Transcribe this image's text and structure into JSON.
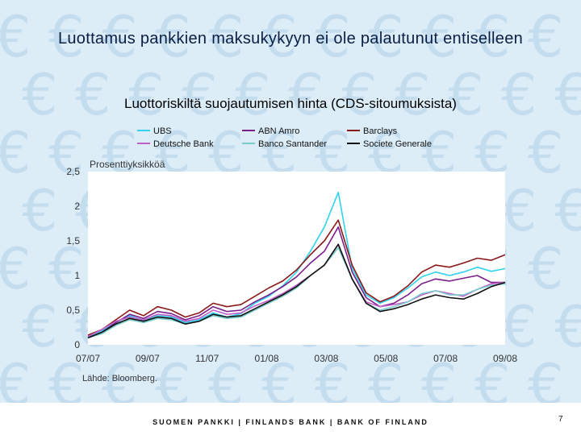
{
  "slide": {
    "title": "Luottamus pankkien maksukykyyn ei ole palautunut entiselleen",
    "footer": "SUOMEN PANKKI | FINLANDS BANK | BANK OF FINLAND",
    "page_number": "7",
    "source": "Lähde: Bloomberg.",
    "colors": {
      "background": "#dcedf8",
      "euro_symbol": "#c4ddee",
      "title": "#0a1f44"
    }
  },
  "chart_data": {
    "type": "line",
    "title": "Luottoriskiltä suojautumisen hinta (CDS-sitoumuksista)",
    "ylabel": "Prosenttiyksikköä",
    "xlabel": "",
    "ylim": [
      0,
      2.5
    ],
    "yticks": [
      "0",
      "0,5",
      "1",
      "1,5",
      "2",
      "2,5"
    ],
    "xticks": [
      "07/07",
      "09/07",
      "11/07",
      "01/08",
      "03/08",
      "05/08",
      "07/08",
      "09/08"
    ],
    "x_range": [
      0,
      15
    ],
    "grid": false,
    "legend_position": "top",
    "x": [
      0,
      0.5,
      1,
      1.5,
      2,
      2.5,
      3,
      3.5,
      4,
      4.5,
      5,
      5.5,
      6,
      6.5,
      7,
      7.5,
      8,
      8.5,
      9,
      9.5,
      10,
      10.5,
      11,
      11.5,
      12,
      12.5,
      13,
      13.5,
      14,
      14.5,
      15
    ],
    "series": [
      {
        "name": "UBS",
        "color": "#2fd3ee",
        "values": [
          0.12,
          0.2,
          0.32,
          0.42,
          0.35,
          0.42,
          0.4,
          0.32,
          0.36,
          0.46,
          0.4,
          0.45,
          0.6,
          0.7,
          0.85,
          1.05,
          1.35,
          1.7,
          2.2,
          1.1,
          0.72,
          0.6,
          0.68,
          0.82,
          0.98,
          1.05,
          1.0,
          1.05,
          1.12,
          1.06,
          1.1
        ]
      },
      {
        "name": "ABN Amro",
        "color": "#7a1f8c",
        "values": [
          0.1,
          0.18,
          0.32,
          0.44,
          0.38,
          0.48,
          0.45,
          0.36,
          0.42,
          0.55,
          0.48,
          0.5,
          0.62,
          0.72,
          0.84,
          0.98,
          1.18,
          1.35,
          1.7,
          1.05,
          0.68,
          0.55,
          0.6,
          0.72,
          0.88,
          0.95,
          0.92,
          0.96,
          1.0,
          0.9,
          0.9
        ]
      },
      {
        "name": "Barclays",
        "color": "#8a1a1a",
        "values": [
          0.14,
          0.22,
          0.36,
          0.5,
          0.42,
          0.55,
          0.5,
          0.4,
          0.46,
          0.6,
          0.55,
          0.58,
          0.7,
          0.82,
          0.92,
          1.08,
          1.3,
          1.5,
          1.8,
          1.15,
          0.75,
          0.62,
          0.7,
          0.85,
          1.05,
          1.15,
          1.12,
          1.18,
          1.25,
          1.22,
          1.3
        ]
      },
      {
        "name": "Deutsche Bank",
        "color": "#c060c8",
        "values": [
          0.12,
          0.22,
          0.34,
          0.4,
          0.36,
          0.44,
          0.42,
          0.34,
          0.38,
          0.5,
          0.44,
          0.46,
          0.56,
          0.64,
          0.74,
          0.86,
          1.0,
          1.15,
          1.45,
          0.95,
          0.62,
          0.55,
          0.58,
          0.62,
          0.72,
          0.78,
          0.74,
          0.7,
          0.8,
          0.88,
          0.9
        ]
      },
      {
        "name": "Banco Santander",
        "color": "#78cccc",
        "values": [
          0.1,
          0.16,
          0.28,
          0.36,
          0.32,
          0.38,
          0.36,
          0.3,
          0.34,
          0.42,
          0.38,
          0.4,
          0.5,
          0.6,
          0.7,
          0.82,
          1.0,
          1.15,
          1.4,
          0.95,
          0.6,
          0.5,
          0.55,
          0.62,
          0.74,
          0.78,
          0.72,
          0.72,
          0.8,
          0.86,
          0.88
        ]
      },
      {
        "name": "Societe Generale",
        "color": "#111111",
        "values": [
          0.1,
          0.18,
          0.3,
          0.38,
          0.34,
          0.4,
          0.38,
          0.3,
          0.34,
          0.44,
          0.4,
          0.42,
          0.52,
          0.62,
          0.72,
          0.84,
          1.0,
          1.15,
          1.45,
          0.95,
          0.6,
          0.48,
          0.52,
          0.58,
          0.66,
          0.72,
          0.68,
          0.66,
          0.74,
          0.84,
          0.9
        ]
      }
    ]
  }
}
